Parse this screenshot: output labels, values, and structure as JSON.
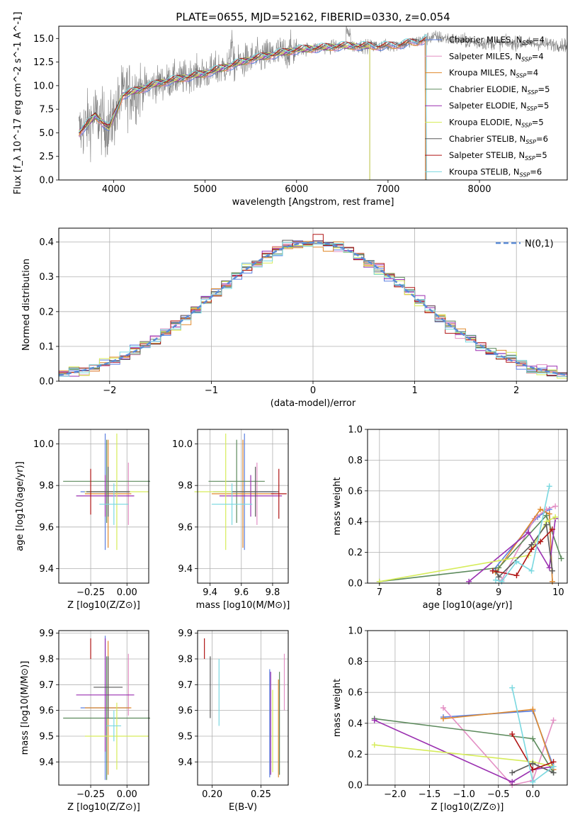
{
  "figure_title": "PLATE=0655, MJD=52162, FIBERID=0330, z=0.054",
  "colors": {
    "Chabrier MILES": "#5b7fe0",
    "Salpeter MILES": "#e38fc4",
    "Kroupa MILES": "#e08a2c",
    "Chabrier ELODIE": "#5c8a5c",
    "Salpeter ELODIE": "#9a2fb0",
    "Kroupa ELODIE": "#d6ec5a",
    "Chabrier STELIB": "#5a5a5a",
    "Salpeter STELIB": "#b01515",
    "Kroupa STELIB": "#7ad8e0",
    "data": "#808080"
  },
  "chart_data": [
    {
      "type": "line",
      "title": "PLATE=0655, MJD=52162, FIBERID=0330, z=0.054",
      "xlabel": "wavelength [Angstrom, rest frame]",
      "ylabel": "Flux [f_λ 10^-17 erg cm^-2 s^-1 A^-1]",
      "xlim": [
        3400,
        8960
      ],
      "ylim": [
        0,
        16.3
      ],
      "xticks": [
        "4000",
        "5000",
        "6000",
        "7000",
        "8000"
      ],
      "yticks": [
        "0.0",
        "2.5",
        "5.0",
        "7.5",
        "10.0",
        "12.5",
        "15.0"
      ],
      "legend": [
        "Chabrier MILES, N_SSP=4",
        "Salpeter MILES, N_SSP=4",
        "Kroupa MILES, N_SSP=4",
        "Chabrier ELODIE, N_SSP=5",
        "Salpeter ELODIE, N_SSP=5",
        "Kroupa ELODIE, N_SSP=5",
        "Chabrier STELIB, N_SSP=6",
        "Salpeter STELIB, N_SSP=5",
        "Kroupa STELIB, N_SSP=6"
      ],
      "legend_location": "upper-right",
      "continuum": [
        [
          3620,
          5.0
        ],
        [
          3800,
          6.8
        ],
        [
          3950,
          5.5
        ],
        [
          4100,
          9.0
        ],
        [
          4500,
          10.3
        ],
        [
          5000,
          11.3
        ],
        [
          5500,
          12.8
        ],
        [
          6000,
          13.8
        ],
        [
          6500,
          14.2
        ],
        [
          7000,
          14.2
        ],
        [
          7300,
          14.6
        ],
        [
          7500,
          15.2
        ],
        [
          8000,
          14.5
        ],
        [
          8500,
          14.5
        ],
        [
          8960,
          14.3
        ]
      ],
      "model_end": {
        "MILES": 7410,
        "ELODIE": 6800,
        "STELIB": 7420
      }
    },
    {
      "type": "histogram",
      "xlabel": "(data-model)/error",
      "ylabel": "Normed distribution",
      "xlim": [
        -2.5,
        2.5
      ],
      "ylim": [
        0,
        0.44
      ],
      "xticks": [
        "−2",
        "−1",
        "0",
        "1",
        "2"
      ],
      "yticks": [
        "0.0",
        "0.1",
        "0.2",
        "0.3",
        "0.4"
      ],
      "reference_label": "N(0,1)",
      "reference_curve": "normal(0,1)"
    },
    {
      "type": "scatter",
      "xlabel": "Z [log10(Z/Z⊙)]",
      "ylabel": "age [log10(age/yr)]",
      "xlim": [
        -0.47,
        0.15
      ],
      "ylim": [
        9.33,
        10.07
      ],
      "xticks": [
        "−0.25",
        "0.00"
      ],
      "yticks": [
        "9.4",
        "9.6",
        "9.8",
        "10.0"
      ],
      "points": [
        {
          "model": "Chabrier MILES",
          "x": -0.15,
          "xerr": 0.17,
          "y": 9.77,
          "yerr": 0.28
        },
        {
          "model": "Salpeter MILES",
          "x": 0.01,
          "xerr": 0.0,
          "y": 9.76,
          "yerr": 0.15
        },
        {
          "model": "Kroupa MILES",
          "x": -0.13,
          "xerr": 0.16,
          "y": 9.76,
          "yerr": 0.26
        },
        {
          "model": "Chabrier ELODIE",
          "x": -0.14,
          "xerr": 0.3,
          "y": 9.82,
          "yerr": 0.2
        },
        {
          "model": "Salpeter ELODIE",
          "x": -0.15,
          "xerr": 0.2,
          "y": 9.75,
          "yerr": 0.1
        },
        {
          "model": "Kroupa ELODIE",
          "x": -0.07,
          "xerr": 0.22,
          "y": 9.77,
          "yerr": 0.28
        },
        {
          "model": "Chabrier STELIB",
          "x": -0.13,
          "xerr": 0.15,
          "y": 9.77,
          "yerr": 0.12
        },
        {
          "model": "Salpeter STELIB",
          "x": -0.25,
          "xerr": 0.0,
          "y": 9.77,
          "yerr": 0.11
        },
        {
          "model": "Kroupa STELIB",
          "x": -0.09,
          "xerr": 0.1,
          "y": 9.71,
          "yerr": 0.1
        }
      ]
    },
    {
      "type": "scatter",
      "xlabel": "mass [log10(M/M⊙)]",
      "ylabel": "",
      "xlim": [
        9.32,
        9.9
      ],
      "ylim": [
        9.33,
        10.07
      ],
      "xticks": [
        "9.4",
        "9.6",
        "9.8"
      ],
      "yticks": [
        "9.4",
        "9.6",
        "9.8",
        "10.0"
      ],
      "points": [
        {
          "model": "Chabrier MILES",
          "x": 9.62,
          "xerr": 0.2,
          "y": 9.77,
          "yerr": 0.28
        },
        {
          "model": "Salpeter MILES",
          "x": 9.7,
          "xerr": 0.0,
          "y": 9.76,
          "yerr": 0.15
        },
        {
          "model": "Kroupa MILES",
          "x": 9.61,
          "xerr": 0.2,
          "y": 9.76,
          "yerr": 0.26
        },
        {
          "model": "Chabrier ELODIE",
          "x": 9.57,
          "xerr": 0.18,
          "y": 9.82,
          "yerr": 0.2
        },
        {
          "model": "Salpeter ELODIE",
          "x": 9.66,
          "xerr": 0.2,
          "y": 9.75,
          "yerr": 0.1
        },
        {
          "model": "Kroupa ELODIE",
          "x": 9.5,
          "xerr": 0.2,
          "y": 9.77,
          "yerr": 0.28
        },
        {
          "model": "Chabrier STELIB",
          "x": 9.69,
          "xerr": 0.15,
          "y": 9.77,
          "yerr": 0.12
        },
        {
          "model": "Salpeter STELIB",
          "x": 9.84,
          "xerr": 0.05,
          "y": 9.76,
          "yerr": 0.12
        },
        {
          "model": "Kroupa STELIB",
          "x": 9.54,
          "xerr": 0.13,
          "y": 9.71,
          "yerr": 0.1
        }
      ]
    },
    {
      "type": "line",
      "xlabel": "age [log10(age/yr)]",
      "ylabel": "mass weight",
      "xlim": [
        6.8,
        10.15
      ],
      "ylim": [
        0,
        1.0
      ],
      "xticks": [
        "7",
        "8",
        "9",
        "10"
      ],
      "yticks": [
        "0.0",
        "0.2",
        "0.4",
        "0.6",
        "0.8",
        "1.0"
      ],
      "series": [
        {
          "model": "Chabrier MILES",
          "x": [
            8.9,
            9.65,
            9.85,
            9.9
          ],
          "y": [
            0.08,
            0.43,
            0.48,
            0.01
          ]
        },
        {
          "model": "Salpeter MILES",
          "x": [
            9.05,
            9.6,
            9.8,
            9.95
          ],
          "y": [
            0.02,
            0.42,
            0.48,
            0.5
          ]
        },
        {
          "model": "Kroupa MILES",
          "x": [
            8.95,
            9.7,
            9.85,
            9.9
          ],
          "y": [
            0.07,
            0.48,
            0.45,
            0.01
          ]
        },
        {
          "model": "Chabrier ELODIE",
          "x": [
            7.0,
            9.0,
            9.8,
            10.05
          ],
          "y": [
            0.01,
            0.1,
            0.44,
            0.16
          ]
        },
        {
          "model": "Salpeter ELODIE",
          "x": [
            8.5,
            9.5,
            9.85,
            9.95
          ],
          "y": [
            0.01,
            0.33,
            0.1,
            0.42
          ]
        },
        {
          "model": "Kroupa ELODIE",
          "x": [
            7.0,
            9.5,
            9.8,
            9.95
          ],
          "y": [
            0.01,
            0.18,
            0.4,
            0.43
          ]
        },
        {
          "model": "Chabrier STELIB",
          "x": [
            8.95,
            9.0,
            9.55,
            9.8,
            9.9
          ],
          "y": [
            0.08,
            0.04,
            0.25,
            0.38,
            0.08
          ]
        },
        {
          "model": "Salpeter STELIB",
          "x": [
            8.9,
            9.3,
            9.55,
            9.7,
            9.9
          ],
          "y": [
            0.08,
            0.05,
            0.22,
            0.27,
            0.35
          ]
        },
        {
          "model": "Kroupa STELIB",
          "x": [
            8.95,
            9.05,
            9.3,
            9.55,
            9.85
          ],
          "y": [
            0.02,
            0.01,
            0.14,
            0.08,
            0.63
          ]
        }
      ]
    },
    {
      "type": "scatter",
      "xlabel": "Z [log10(Z/Z⊙)]",
      "ylabel": "mass [log10(M/M⊙)]",
      "xlim": [
        -0.47,
        0.15
      ],
      "ylim": [
        9.31,
        9.91
      ],
      "xticks": [
        "−0.25",
        "0.00"
      ],
      "yticks": [
        "9.4",
        "9.5",
        "9.6",
        "9.7",
        "9.8",
        "9.9"
      ],
      "points": [
        {
          "model": "Chabrier MILES",
          "x": -0.15,
          "xerr": 0.17,
          "y": 9.61,
          "yerr": 0.28
        },
        {
          "model": "Salpeter MILES",
          "x": 0.01,
          "xerr": 0.0,
          "y": 9.7,
          "yerr": 0.12
        },
        {
          "model": "Kroupa MILES",
          "x": -0.13,
          "xerr": 0.16,
          "y": 9.61,
          "yerr": 0.26
        },
        {
          "model": "Chabrier ELODIE",
          "x": -0.14,
          "xerr": 0.3,
          "y": 9.57,
          "yerr": 0.24
        },
        {
          "model": "Salpeter ELODIE",
          "x": -0.15,
          "xerr": 0.2,
          "y": 9.66,
          "yerr": 0.22
        },
        {
          "model": "Kroupa ELODIE",
          "x": -0.07,
          "xerr": 0.22,
          "y": 9.5,
          "yerr": 0.13
        },
        {
          "model": "Chabrier STELIB",
          "x": -0.13,
          "xerr": 0.1,
          "y": 9.69,
          "yerr": 0.12
        },
        {
          "model": "Salpeter STELIB",
          "x": -0.25,
          "xerr": 0.0,
          "y": 9.84,
          "yerr": 0.04
        },
        {
          "model": "Kroupa STELIB",
          "x": -0.09,
          "xerr": 0.05,
          "y": 9.54,
          "yerr": 0.06
        }
      ]
    },
    {
      "type": "scatter",
      "xlabel": "E(B-V)",
      "ylabel": "",
      "xlim": [
        0.185,
        0.278
      ],
      "ylim": [
        9.31,
        9.91
      ],
      "xticks": [
        "0.20",
        "0.25"
      ],
      "yticks": [
        "9.4",
        "9.5",
        "9.6",
        "9.7",
        "9.8",
        "9.9"
      ],
      "points": [
        {
          "model": "Salpeter STELIB",
          "y": 9.84,
          "yerr": 0.04,
          "x": 0.192
        },
        {
          "model": "Chabrier STELIB",
          "y": 9.69,
          "yerr": 0.12,
          "x": 0.198
        },
        {
          "model": "Kroupa STELIB",
          "y": 9.67,
          "yerr": 0.13,
          "x": 0.207
        },
        {
          "model": "Chabrier MILES",
          "y": 9.55,
          "yerr": 0.21,
          "x": 0.259
        },
        {
          "model": "Salpeter ELODIE",
          "y": 9.55,
          "yerr": 0.2,
          "x": 0.26
        },
        {
          "model": "Kroupa ELODIE",
          "y": 9.52,
          "yerr": 0.16,
          "x": 0.262
        },
        {
          "model": "Kroupa MILES",
          "y": 9.53,
          "yerr": 0.19,
          "x": 0.268
        },
        {
          "model": "Chabrier ELODIE",
          "y": 9.55,
          "yerr": 0.2,
          "x": 0.269
        },
        {
          "model": "Salpeter MILES",
          "y": 9.71,
          "yerr": 0.11,
          "x": 0.274
        }
      ]
    },
    {
      "type": "line",
      "xlabel": "Z [log10(Z/Z⊙)]",
      "ylabel": "mass weight",
      "xlim": [
        -2.4,
        0.5
      ],
      "ylim": [
        0,
        1.0
      ],
      "xticks": [
        "−2.0",
        "−1.5",
        "−1.0",
        "−0.5",
        "0.0"
      ],
      "yticks": [
        "0.0",
        "0.2",
        "0.4",
        "0.6",
        "0.8",
        "1.0"
      ],
      "series": [
        {
          "model": "Chabrier MILES",
          "x": [
            -1.3,
            0.0,
            0.3
          ],
          "y": [
            0.44,
            0.48,
            0.12
          ]
        },
        {
          "model": "Salpeter MILES",
          "x": [
            -1.3,
            -0.3,
            0.0,
            0.3
          ],
          "y": [
            0.5,
            0.0,
            0.03,
            0.42
          ]
        },
        {
          "model": "Kroupa MILES",
          "x": [
            -1.3,
            0.0,
            0.3
          ],
          "y": [
            0.43,
            0.49,
            0.1
          ]
        },
        {
          "model": "Chabrier ELODIE",
          "x": [
            -2.3,
            0.0,
            0.3
          ],
          "y": [
            0.43,
            0.3,
            0.08
          ]
        },
        {
          "model": "Salpeter ELODIE",
          "x": [
            -2.3,
            -0.3,
            0.0,
            0.3
          ],
          "y": [
            0.42,
            0.02,
            0.1,
            0.12
          ]
        },
        {
          "model": "Kroupa ELODIE",
          "x": [
            -2.3,
            0.0,
            0.3
          ],
          "y": [
            0.26,
            0.15,
            0.12
          ]
        },
        {
          "model": "Chabrier STELIB",
          "x": [
            -0.3,
            0.0,
            0.3
          ],
          "y": [
            0.08,
            0.14,
            0.08
          ]
        },
        {
          "model": "Salpeter STELIB",
          "x": [
            -0.3,
            0.0,
            0.3
          ],
          "y": [
            0.33,
            0.1,
            0.15
          ]
        },
        {
          "model": "Kroupa STELIB",
          "x": [
            -0.3,
            0.0,
            0.3
          ],
          "y": [
            0.63,
            0.02,
            0.12
          ]
        }
      ]
    }
  ]
}
